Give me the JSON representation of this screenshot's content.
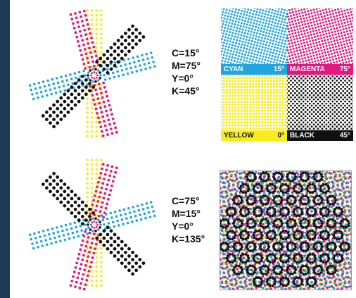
{
  "colors": {
    "cyan": "#1fa6e0",
    "magenta": "#e3187f",
    "yellow": "#f7ec1e",
    "black": "#111111",
    "frame": "#1d3a55"
  },
  "top_rosette": {
    "angles": [
      "C=15°",
      "M=75°",
      "Y=0°",
      "K=45°"
    ]
  },
  "bottom_rosette": {
    "angles": [
      "C=75°",
      "M=15°",
      "Y=0°",
      "K=135°"
    ]
  },
  "swatches": {
    "cyan": {
      "name": "CYAN",
      "angle": "15°"
    },
    "magenta": {
      "name": "MAGENTA",
      "angle": "75°"
    },
    "yellow": {
      "name": "YELLOW",
      "angle": "0°"
    },
    "black": {
      "name": "BLACK",
      "angle": "45°"
    }
  }
}
